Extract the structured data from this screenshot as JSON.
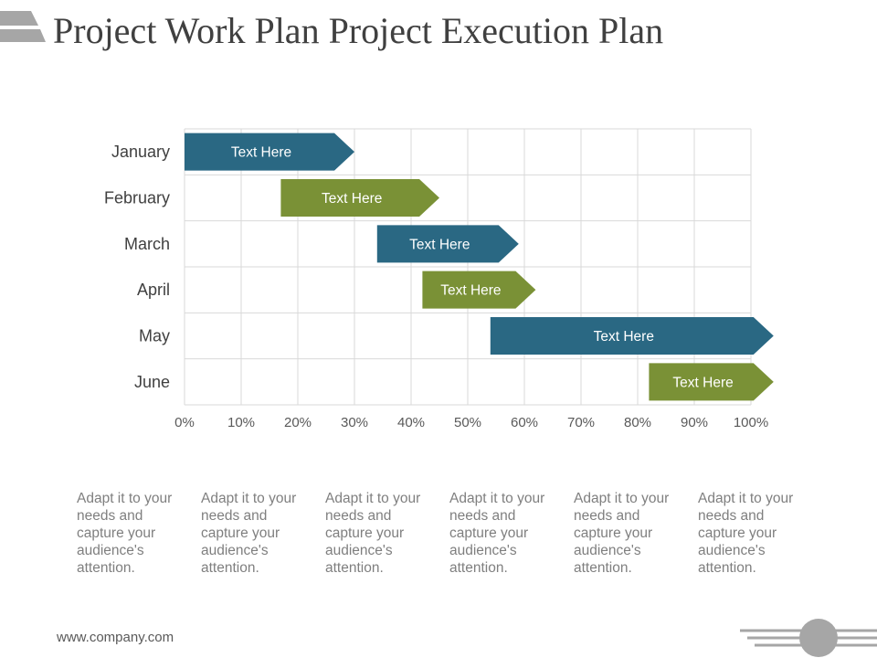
{
  "slide": {
    "title": "Project Work Plan Project Execution Plan",
    "footer_url": "www.company.com"
  },
  "colors": {
    "blue": "#2a6883",
    "green": "#7a9136",
    "grid": "#d9d9d9",
    "label": "#404040",
    "decor": "#a6a6a6"
  },
  "chart_data": {
    "type": "bar",
    "orientation": "horizontal",
    "categories": [
      "January",
      "February",
      "March",
      "April",
      "May",
      "June"
    ],
    "series": [
      {
        "start": 0,
        "end": 30,
        "label": "Text Here",
        "color": "blue"
      },
      {
        "start": 17,
        "end": 45,
        "label": "Text Here",
        "color": "green"
      },
      {
        "start": 34,
        "end": 59,
        "label": "Text Here",
        "color": "blue"
      },
      {
        "start": 42,
        "end": 62,
        "label": "Text Here",
        "color": "green"
      },
      {
        "start": 54,
        "end": 104,
        "label": "Text Here",
        "color": "blue"
      },
      {
        "start": 82,
        "end": 104,
        "label": "Text Here",
        "color": "green"
      }
    ],
    "x_ticks": [
      "0%",
      "10%",
      "20%",
      "30%",
      "40%",
      "50%",
      "60%",
      "70%",
      "80%",
      "90%",
      "100%"
    ],
    "xlim": [
      0,
      100
    ],
    "grid": true,
    "legend": "none"
  },
  "descriptions": [
    "Adapt it to your needs and capture your audience's attention.",
    "Adapt it to your needs and capture your audience's attention.",
    "Adapt it to your needs and capture your audience's attention.",
    "Adapt it to your needs and capture your audience's attention.",
    "Adapt it to your needs and capture your audience's attention.",
    "Adapt it to your needs and capture your audience's attention."
  ]
}
